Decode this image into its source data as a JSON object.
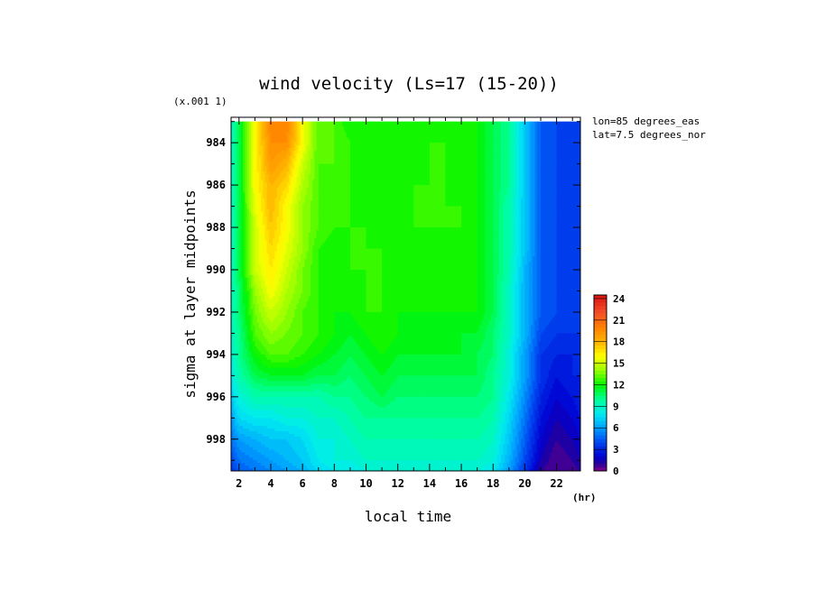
{
  "chart_data": {
    "type": "heatmap",
    "title": "wind velocity (Ls=17 (15-20))",
    "y_scale_note": "(x.001 1)",
    "xlabel": "local time",
    "x_unit": "(hr)",
    "ylabel": "sigma at layer midpoints",
    "annotations": [
      "lon=85 degrees_eas",
      "lat=7.5 degrees_nor"
    ],
    "xlim": [
      1.5,
      23.5
    ],
    "ylim": [
      999.5,
      982.8
    ],
    "x_ticks": [
      "2",
      "4",
      "6",
      "8",
      "10",
      "12",
      "14",
      "16",
      "18",
      "20",
      "22"
    ],
    "y_ticks": [
      "984",
      "986",
      "988",
      "990",
      "992",
      "994",
      "996",
      "998"
    ],
    "colorbar": {
      "ticks": [
        "0",
        "3",
        "6",
        "9",
        "12",
        "15",
        "18",
        "21",
        "24"
      ],
      "min": 0,
      "max": 24.5,
      "step": 0.5
    },
    "x": [
      1.5,
      2,
      3,
      4,
      5,
      6,
      7,
      8,
      9,
      10,
      11,
      12,
      13,
      14,
      15,
      16,
      17,
      18,
      19,
      20,
      21,
      22,
      23,
      23.5
    ],
    "y": [
      983,
      984,
      985,
      986,
      987,
      988,
      989,
      990,
      991,
      992,
      993,
      994,
      995,
      996,
      997,
      998,
      999,
      999.5
    ],
    "z": [
      [
        9,
        11,
        16,
        20,
        20,
        16,
        13,
        13,
        12,
        12,
        12,
        12,
        12,
        12,
        12,
        12,
        12,
        11,
        10,
        7,
        4.5,
        4,
        3.5,
        3.5
      ],
      [
        9,
        11,
        16,
        19.5,
        19.5,
        16,
        13,
        13,
        12.5,
        12,
        12,
        12,
        12,
        12.5,
        12.5,
        12,
        12,
        11,
        10,
        7,
        4.5,
        4,
        3.5,
        3.5
      ],
      [
        9,
        11,
        16,
        19,
        18,
        15,
        13,
        13,
        12.5,
        12,
        12,
        12,
        12,
        12.5,
        12.5,
        12,
        12,
        11,
        10,
        7,
        4.5,
        4,
        3.5,
        3.5
      ],
      [
        9,
        11,
        16,
        18,
        17,
        14.5,
        13,
        12.5,
        12.5,
        12,
        12,
        12,
        12.5,
        12.5,
        12.5,
        12,
        12,
        11,
        10,
        7,
        4.5,
        4,
        3.5,
        3.5
      ],
      [
        9,
        11,
        15.5,
        18,
        16,
        14,
        13,
        12.5,
        12.5,
        12,
        12,
        12,
        12.5,
        12.5,
        12.5,
        12.5,
        12,
        11,
        9.5,
        7,
        4.5,
        4,
        3.5,
        3.5
      ],
      [
        9,
        11,
        15,
        17.5,
        16,
        14,
        13,
        12.5,
        12.5,
        12.5,
        12,
        12,
        12.5,
        12.5,
        12.5,
        12.5,
        12,
        11,
        9.5,
        7,
        4.5,
        4,
        3.5,
        3.5
      ],
      [
        9,
        11,
        15,
        17,
        15.5,
        14,
        12.5,
        12,
        12.5,
        12.5,
        12.5,
        12,
        12,
        12,
        12,
        12,
        12,
        11,
        9.5,
        7,
        4.5,
        4,
        3.5,
        3.5
      ],
      [
        9,
        11,
        15,
        16.5,
        15,
        13.5,
        12.5,
        12,
        12.5,
        12.5,
        12.5,
        12,
        12,
        12,
        12,
        12,
        12,
        11,
        9.5,
        6.5,
        4.5,
        4,
        3.5,
        3.5
      ],
      [
        9,
        10.5,
        14,
        16,
        14.5,
        13.5,
        12.5,
        12,
        12,
        12.5,
        12.5,
        12,
        12,
        12,
        12,
        12,
        12,
        11,
        9,
        6.5,
        4.5,
        4,
        3.5,
        3.5
      ],
      [
        9,
        10.5,
        13.5,
        15,
        14,
        13,
        12.5,
        12,
        12,
        12.5,
        12.5,
        12,
        12,
        12,
        12,
        12,
        12,
        11,
        9,
        6.5,
        4.5,
        4,
        3.5,
        3.5
      ],
      [
        9,
        10,
        13,
        14,
        13.5,
        13,
        12.5,
        12,
        11.5,
        12,
        12.5,
        12,
        11.5,
        11.5,
        11.5,
        11.5,
        11.5,
        10.5,
        9,
        6.5,
        4,
        3.5,
        3.5,
        3.5
      ],
      [
        8.5,
        10,
        12,
        13,
        13,
        12.5,
        12,
        11.5,
        11,
        11.5,
        12,
        11.5,
        11.5,
        11.5,
        11.5,
        11.5,
        11,
        10.5,
        8.5,
        6,
        3.5,
        3,
        3,
        3
      ],
      [
        8,
        9.5,
        11,
        11.5,
        11.5,
        11.5,
        11,
        11,
        10.5,
        11,
        11.5,
        11,
        11,
        11,
        11,
        11,
        11,
        10,
        8.5,
        6,
        3.5,
        2.5,
        3,
        3
      ],
      [
        7,
        8.5,
        9.5,
        9.5,
        9.5,
        9.5,
        9.5,
        10,
        10,
        10.5,
        11,
        10.5,
        10.5,
        10.5,
        10.5,
        10.5,
        10.5,
        10,
        8,
        5.5,
        3,
        2,
        2.5,
        3
      ],
      [
        6,
        7.5,
        8,
        8,
        8.5,
        8.5,
        9,
        9,
        9.5,
        10,
        10,
        10,
        10,
        10,
        10,
        10,
        10,
        9.5,
        7.5,
        5,
        2.5,
        1.5,
        2,
        2.5
      ],
      [
        5,
        6,
        6.5,
        7,
        7,
        7.5,
        8.5,
        8.5,
        9,
        9.5,
        9.5,
        9.5,
        9.5,
        9.5,
        9.5,
        9.5,
        9.5,
        9,
        7,
        4.5,
        2,
        1,
        1.5,
        2
      ],
      [
        4,
        5,
        5.5,
        6,
        6.5,
        7,
        8,
        8.5,
        8.5,
        9,
        9,
        9,
        9,
        9,
        9,
        9,
        9,
        8.5,
        6.5,
        4,
        1.5,
        0.5,
        1,
        1.5
      ],
      [
        3.5,
        4.5,
        5,
        5.5,
        6,
        6.5,
        7.5,
        8,
        8,
        8.5,
        8.5,
        8.5,
        8.5,
        8.5,
        8.5,
        8.5,
        8.5,
        8,
        6,
        3.5,
        1,
        0.5,
        0.5,
        1
      ]
    ]
  }
}
